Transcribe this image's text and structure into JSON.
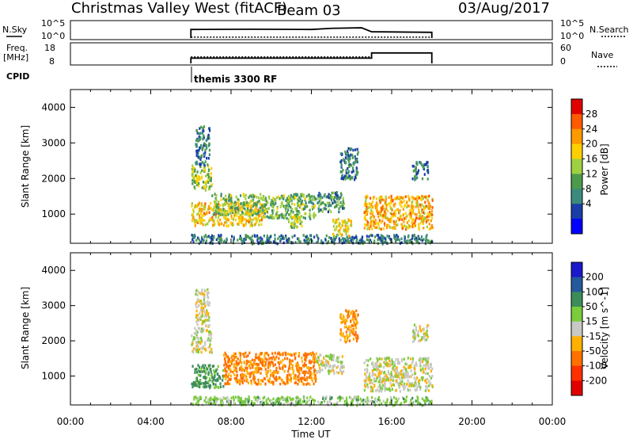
{
  "header": {
    "station": "Christmas Valley West (fitACF)",
    "beam": "Beam 03",
    "date": "03/Aug/2017"
  },
  "panels": {
    "nsky_label": "N.Sky",
    "nsky_ticks": [
      "10^5",
      "10^0"
    ],
    "nsearch_label": "N.Search",
    "freq_label_1": "Freq.",
    "freq_label_2": "[MHz]",
    "freq_ticks": [
      "18",
      "8"
    ],
    "nave_label": "Nave",
    "nave_ticks": [
      "60",
      "0"
    ],
    "cpid_label": "CPID",
    "cpid_value": "themis 3300 RF"
  },
  "colorbars": {
    "power": {
      "title": "Power [dB]",
      "ticks": [
        "28",
        "24",
        "20",
        "16",
        "12",
        "8",
        "4"
      ],
      "colors": [
        "#e00000",
        "#ff5a00",
        "#ff9900",
        "#ffd000",
        "#9fd040",
        "#4d9a4d",
        "#3c8a7e",
        "#1a3ea8",
        "#0000ff"
      ]
    },
    "velocity": {
      "title": "Velocity [m s^-1]",
      "ticks": [
        "200",
        "100",
        "50",
        "15",
        "-15",
        "-50",
        "-100",
        "-200"
      ],
      "colors": [
        "#1a1acc",
        "#245a9a",
        "#3c8c5a",
        "#7acc3a",
        "#c8c8c4",
        "#ffb000",
        "#ff7000",
        "#ff3000",
        "#e00000"
      ]
    }
  },
  "chart_data": [
    {
      "type": "heatmap",
      "title": "Power",
      "ylabel": "Slant Range [km]",
      "xlabel": "Time UT",
      "x_range_hours": [
        0,
        24
      ],
      "ylim": [
        180,
        4500
      ],
      "yticks": [
        "4000",
        "3000",
        "2000",
        "1000"
      ],
      "xticks": [
        "00:00",
        "04:00",
        "08:00",
        "12:00",
        "16:00",
        "20:00",
        "00:00"
      ],
      "data_coverage_hours": [
        6,
        18
      ],
      "echo_regions": [
        {
          "t0": 6.0,
          "t1": 18.0,
          "r0": 200,
          "r1": 450,
          "level": 8
        },
        {
          "t0": 6.0,
          "t1": 9.6,
          "r0": 700,
          "r1": 1350,
          "level": 21
        },
        {
          "t0": 7.0,
          "t1": 9.6,
          "r0": 1000,
          "r1": 1600,
          "level": 14
        },
        {
          "t0": 9.6,
          "t1": 12.2,
          "r0": 900,
          "r1": 1600,
          "level": 13
        },
        {
          "t0": 12.2,
          "t1": 13.6,
          "r0": 1100,
          "r1": 1650,
          "level": 10
        },
        {
          "t0": 10.8,
          "t1": 11.5,
          "r0": 650,
          "r1": 1000,
          "level": 16
        },
        {
          "t0": 13.0,
          "t1": 14.0,
          "r0": 400,
          "r1": 900,
          "level": 20
        },
        {
          "t0": 14.6,
          "t1": 18.0,
          "r0": 600,
          "r1": 1550,
          "level": 22
        },
        {
          "t0": 6.0,
          "t1": 7.0,
          "r0": 1700,
          "r1": 2400,
          "level": 16
        },
        {
          "t0": 6.2,
          "t1": 6.9,
          "r0": 2400,
          "r1": 3500,
          "level": 8
        },
        {
          "t0": 13.4,
          "t1": 14.3,
          "r0": 2000,
          "r1": 2900,
          "level": 8
        },
        {
          "t0": 17.0,
          "t1": 17.8,
          "r0": 2000,
          "r1": 2500,
          "level": 8
        }
      ]
    },
    {
      "type": "heatmap",
      "title": "Velocity",
      "ylabel": "Slant Range [km]",
      "xlabel": "Time UT",
      "x_range_hours": [
        0,
        24
      ],
      "ylim": [
        180,
        4500
      ],
      "yticks": [
        "4000",
        "3000",
        "2000",
        "1000"
      ],
      "xticks": [
        "00:00",
        "04:00",
        "08:00",
        "12:00",
        "16:00",
        "20:00",
        "00:00"
      ],
      "data_coverage_hours": [
        6,
        18
      ],
      "echo_regions": [
        {
          "t0": 6.0,
          "t1": 18.0,
          "r0": 200,
          "r1": 450,
          "level": 30
        },
        {
          "t0": 6.0,
          "t1": 7.6,
          "r0": 700,
          "r1": 1350,
          "level": 60
        },
        {
          "t0": 7.6,
          "t1": 12.2,
          "r0": 800,
          "r1": 1700,
          "level": -60
        },
        {
          "t0": 12.2,
          "t1": 13.6,
          "r0": 1100,
          "r1": 1650,
          "level": 0
        },
        {
          "t0": 14.6,
          "t1": 18.0,
          "r0": 600,
          "r1": 1550,
          "level": 0
        },
        {
          "t0": 6.0,
          "t1": 7.0,
          "r0": 1700,
          "r1": 2400,
          "level": 0
        },
        {
          "t0": 6.2,
          "t1": 6.9,
          "r0": 2400,
          "r1": 3500,
          "level": 0
        },
        {
          "t0": 13.4,
          "t1": 14.3,
          "r0": 2000,
          "r1": 2900,
          "level": -40
        },
        {
          "t0": 17.0,
          "t1": 17.8,
          "r0": 2000,
          "r1": 2500,
          "level": 0
        }
      ]
    },
    {
      "type": "line",
      "title": "N.Sky / N.Search",
      "x_range_hours": [
        0,
        24
      ],
      "series": [
        {
          "name": "N.Sky",
          "x": [
            6.0,
            9.0,
            12.0,
            13.0,
            14.5,
            15.0,
            18.0
          ],
          "y": [
            3.0,
            3.1,
            3.0,
            3.4,
            3.6,
            2.2,
            2.0
          ]
        },
        {
          "name": "N.Search",
          "x": [
            6.0,
            18.0
          ],
          "y": [
            0.3,
            0.3
          ]
        }
      ]
    },
    {
      "type": "line",
      "title": "Freq. / Nave",
      "x_range_hours": [
        0,
        24
      ],
      "series": [
        {
          "name": "Freq. [MHz]",
          "x": [
            6.0,
            15.0,
            15.0,
            18.0
          ],
          "y": [
            11.0,
            11.0,
            14.0,
            14.0
          ]
        },
        {
          "name": "Nave",
          "x": [
            6.0,
            18.0
          ],
          "y": [
            22.0,
            22.0
          ]
        }
      ]
    }
  ]
}
